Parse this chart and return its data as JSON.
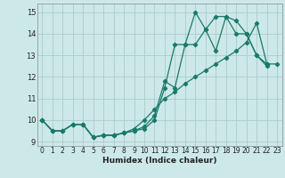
{
  "xlabel": "Humidex (Indice chaleur)",
  "bg_color": "#cde8e8",
  "grid_color": "#aacccc",
  "line_color": "#1a7a6a",
  "xlim": [
    -0.5,
    23.5
  ],
  "ylim": [
    8.8,
    15.4
  ],
  "xticks": [
    0,
    1,
    2,
    3,
    4,
    5,
    6,
    7,
    8,
    9,
    10,
    11,
    12,
    13,
    14,
    15,
    16,
    17,
    18,
    19,
    20,
    21,
    22,
    23
  ],
  "yticks": [
    9,
    10,
    11,
    12,
    13,
    14,
    15
  ],
  "line1_x": [
    0,
    1,
    2,
    3,
    4,
    5,
    6,
    7,
    8,
    9,
    10,
    11,
    12,
    13,
    14,
    15,
    16,
    17,
    18,
    19,
    20,
    21,
    22
  ],
  "line1_y": [
    10.0,
    9.5,
    9.5,
    9.8,
    9.8,
    9.2,
    9.3,
    9.3,
    9.4,
    9.5,
    9.6,
    10.0,
    11.5,
    13.5,
    13.5,
    15.0,
    14.2,
    13.2,
    14.8,
    14.0,
    14.0,
    13.0,
    12.5
  ],
  "line2_x": [
    0,
    1,
    2,
    3,
    4,
    5,
    6,
    7,
    8,
    9,
    10,
    11,
    12,
    13,
    14,
    15,
    16,
    17,
    18,
    19,
    20,
    21,
    22
  ],
  "line2_y": [
    10.0,
    9.5,
    9.5,
    9.8,
    9.8,
    9.2,
    9.3,
    9.3,
    9.4,
    9.5,
    9.7,
    10.2,
    11.8,
    11.5,
    13.5,
    13.5,
    14.2,
    14.8,
    14.8,
    14.6,
    14.0,
    13.0,
    12.6
  ],
  "line3_x": [
    0,
    1,
    2,
    3,
    4,
    5,
    6,
    7,
    8,
    9,
    10,
    11,
    12,
    13,
    14,
    15,
    16,
    17,
    18,
    19,
    20,
    21,
    22,
    23
  ],
  "line3_y": [
    10.0,
    9.5,
    9.5,
    9.8,
    9.8,
    9.2,
    9.3,
    9.3,
    9.4,
    9.6,
    10.0,
    10.5,
    11.0,
    11.3,
    11.7,
    12.0,
    12.3,
    12.6,
    12.9,
    13.2,
    13.6,
    14.5,
    12.6,
    12.6
  ]
}
